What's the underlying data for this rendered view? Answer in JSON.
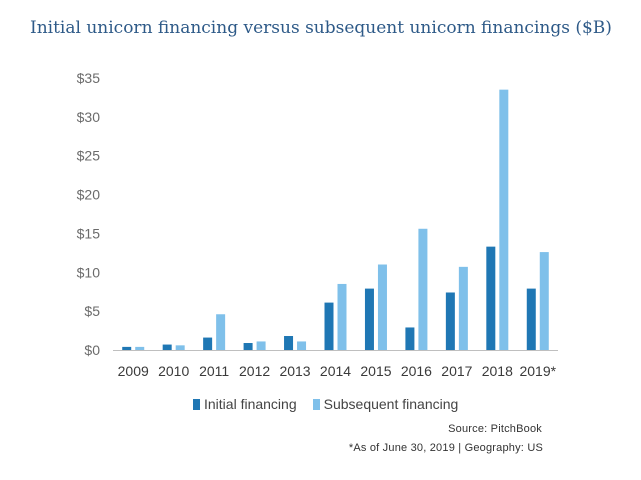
{
  "header": {
    "title": "Initial unicorn financing versus subsequent unicorn financings ($B)"
  },
  "footer": {
    "source": "Source: PitchBook",
    "note": "*As of June 30, 2019 | Geography: US"
  },
  "colors": {
    "initial": "#1f77b4",
    "subsequent": "#7fc0ea",
    "title": "#2e5a88"
  },
  "chart_data": {
    "type": "bar",
    "title": "Initial unicorn financing versus subsequent unicorn financings ($B)",
    "xlabel": "",
    "ylabel": "",
    "categories": [
      "2009",
      "2010",
      "2011",
      "2012",
      "2013",
      "2014",
      "2015",
      "2016",
      "2017",
      "2018",
      "2019*"
    ],
    "series": [
      {
        "name": "Initial financing",
        "values": [
          0.4,
          0.7,
          1.6,
          0.9,
          1.8,
          6.1,
          7.9,
          2.9,
          7.4,
          13.3,
          7.9
        ]
      },
      {
        "name": "Subsequent financing",
        "values": [
          0.4,
          0.6,
          4.6,
          1.1,
          1.1,
          8.5,
          11.0,
          15.6,
          10.7,
          33.5,
          12.6
        ]
      }
    ],
    "ylim": [
      0,
      35
    ],
    "yticks": [
      0,
      5,
      10,
      15,
      20,
      25,
      30,
      35
    ],
    "ytick_labels": [
      "$0",
      "$5",
      "$10",
      "$15",
      "$20",
      "$25",
      "$30",
      "$35"
    ],
    "grid": false,
    "legend": "bottom"
  }
}
